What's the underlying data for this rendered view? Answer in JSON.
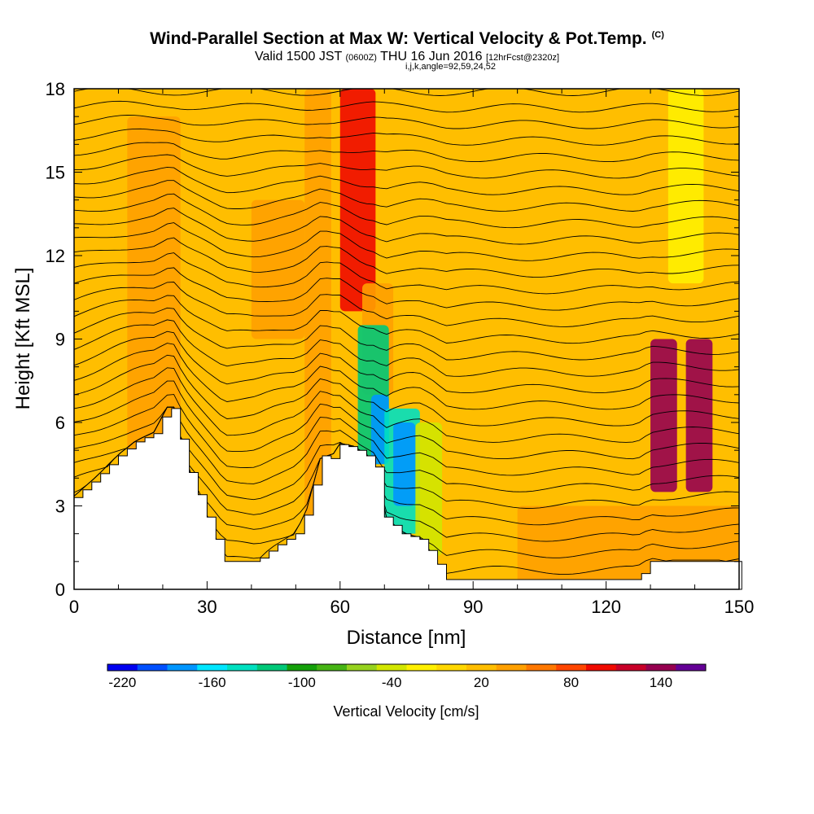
{
  "header": {
    "title": "Wind-Parallel Section at Max W: Vertical Velocity & Pot.Temp.",
    "copyright": "(C)",
    "valid_pre": "Valid 1500 JST",
    "valid_utc": "(0600Z)",
    "valid_post": "THU 16 Jun 2016",
    "forecast": "[12hrFcst@2320z]",
    "indices": "i,j,k,angle=92,59,24,52"
  },
  "chart_data": {
    "type": "heatmap",
    "xlabel": "Distance [nm]",
    "ylabel": "Height [Kft MSL]",
    "xlim": [
      0,
      150
    ],
    "ylim": [
      0,
      18
    ],
    "x_ticks": [
      "0",
      "30",
      "60",
      "90",
      "120",
      "150"
    ],
    "y_ticks": [
      "0",
      "3",
      "6",
      "9",
      "12",
      "15",
      "18"
    ],
    "colorbar": {
      "title": "Vertical Velocity [cm/s]",
      "range": [
        -230,
        170
      ],
      "tick_labels": [
        "-220",
        "-160",
        "-100",
        "-40",
        "20",
        "80",
        "140"
      ],
      "colors": [
        "#0000f0",
        "#0050ff",
        "#0096ff",
        "#00e6ff",
        "#00e0c0",
        "#00c878",
        "#14a00a",
        "#46b414",
        "#96d21e",
        "#d2e600",
        "#fff000",
        "#ffd700",
        "#ffbe00",
        "#ffa000",
        "#ff7800",
        "#ff4600",
        "#f00a00",
        "#c80028",
        "#960050",
        "#640096"
      ]
    },
    "terrain_kft": [
      [
        0,
        3.3
      ],
      [
        5,
        4.0
      ],
      [
        10,
        4.8
      ],
      [
        14,
        5.3
      ],
      [
        18,
        5.6
      ],
      [
        21,
        6.5
      ],
      [
        23,
        6.5
      ],
      [
        24,
        5.4
      ],
      [
        26,
        4.2
      ],
      [
        29,
        3.0
      ],
      [
        31,
        2.2
      ],
      [
        34,
        1.0
      ],
      [
        41,
        1.0
      ],
      [
        45,
        1.5
      ],
      [
        50,
        2.0
      ],
      [
        53,
        3.0
      ],
      [
        55,
        4.5
      ],
      [
        56,
        4.8
      ],
      [
        58,
        4.7
      ],
      [
        60,
        5.2
      ],
      [
        63,
        5.1
      ],
      [
        66,
        4.8
      ],
      [
        68,
        4.4
      ],
      [
        69,
        3.5
      ],
      [
        70,
        2.6
      ],
      [
        74,
        2.0
      ],
      [
        78,
        1.8
      ],
      [
        81,
        1.2
      ],
      [
        83,
        0.6
      ],
      [
        84,
        0.35
      ],
      [
        127,
        0.35
      ],
      [
        130,
        1.0
      ],
      [
        152,
        1.0
      ]
    ],
    "vertical_velocity_cells": [
      {
        "x": [
          0,
          150
        ],
        "y": [
          0,
          18
        ],
        "w": 15
      },
      {
        "x": [
          12,
          24
        ],
        "y": [
          5,
          17
        ],
        "w": 45
      },
      {
        "x": [
          40,
          52
        ],
        "y": [
          9,
          14
        ],
        "w": 35
      },
      {
        "x": [
          52,
          58
        ],
        "y": [
          2,
          18
        ],
        "w": 40
      },
      {
        "x": [
          60,
          68
        ],
        "y": [
          10,
          18
        ],
        "w": 100
      },
      {
        "x": [
          65,
          72
        ],
        "y": [
          7,
          11
        ],
        "w": 40
      },
      {
        "x": [
          64,
          71
        ],
        "y": [
          4.5,
          9.5
        ],
        "w": -120
      },
      {
        "x": [
          67,
          71
        ],
        "y": [
          4.5,
          7
        ],
        "w": -175
      },
      {
        "x": [
          70,
          78
        ],
        "y": [
          2,
          6.5
        ],
        "w": -145
      },
      {
        "x": [
          72,
          77
        ],
        "y": [
          3,
          6
        ],
        "w": -185
      },
      {
        "x": [
          77,
          83
        ],
        "y": [
          1.2,
          6
        ],
        "w": -40
      },
      {
        "x": [
          130,
          136
        ],
        "y": [
          3.5,
          9
        ],
        "w": 140
      },
      {
        "x": [
          138,
          144
        ],
        "y": [
          3.5,
          9
        ],
        "w": 130
      },
      {
        "x": [
          134,
          142
        ],
        "y": [
          11,
          18
        ],
        "w": -30
      },
      {
        "x": [
          100,
          150
        ],
        "y": [
          0,
          3
        ],
        "w": 30
      }
    ],
    "theta_contours": {
      "min_height_kft": 0.5,
      "max_height_kft": 17.9,
      "interval_kft": 0.6
    }
  }
}
